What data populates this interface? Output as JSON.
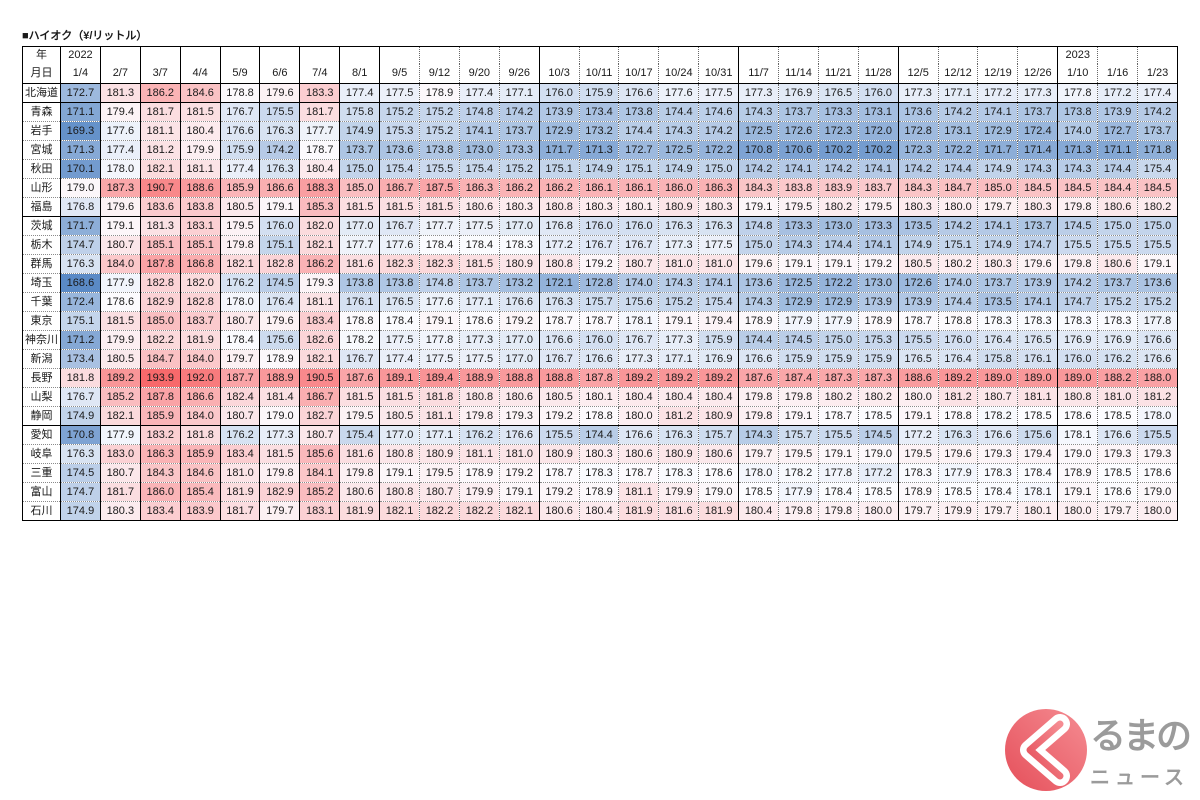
{
  "chart_data": {
    "type": "heatmap",
    "title": "■ハイオク（¥/リットル）",
    "year_label": "年",
    "date_label": "月日",
    "columns": [
      {
        "year": "2022",
        "date": "1/4"
      },
      {
        "date": "2/7"
      },
      {
        "date": "3/7"
      },
      {
        "date": "4/4"
      },
      {
        "date": "5/9"
      },
      {
        "date": "6/6"
      },
      {
        "date": "7/4"
      },
      {
        "date": "8/1"
      },
      {
        "date": "9/5"
      },
      {
        "date": "9/12"
      },
      {
        "date": "9/20"
      },
      {
        "date": "9/26"
      },
      {
        "date": "10/3"
      },
      {
        "date": "10/11"
      },
      {
        "date": "10/17"
      },
      {
        "date": "10/24"
      },
      {
        "date": "10/31"
      },
      {
        "date": "11/7"
      },
      {
        "date": "11/14"
      },
      {
        "date": "11/21"
      },
      {
        "date": "11/28"
      },
      {
        "date": "12/5"
      },
      {
        "date": "12/12"
      },
      {
        "date": "12/19"
      },
      {
        "date": "12/26"
      },
      {
        "year": "2023",
        "date": "1/10"
      },
      {
        "date": "1/16"
      },
      {
        "date": "1/23"
      }
    ],
    "rows": [
      {
        "name": "北海道",
        "values": [
          172.7,
          181.3,
          186.2,
          184.6,
          178.8,
          179.6,
          183.3,
          177.4,
          177.5,
          178.9,
          177.4,
          177.1,
          176.0,
          175.9,
          176.6,
          177.6,
          177.5,
          177.3,
          176.9,
          176.5,
          176.0,
          177.3,
          177.1,
          177.2,
          177.3,
          177.8,
          177.2,
          177.4
        ]
      },
      {
        "name": "青森",
        "values": [
          171.1,
          179.4,
          181.7,
          181.5,
          176.7,
          175.5,
          181.7,
          175.8,
          175.2,
          175.2,
          174.8,
          174.2,
          173.9,
          173.4,
          173.8,
          174.4,
          174.6,
          174.3,
          173.7,
          173.3,
          173.1,
          173.6,
          174.2,
          174.1,
          173.7,
          173.8,
          173.9,
          174.2
        ]
      },
      {
        "name": "岩手",
        "values": [
          169.3,
          177.6,
          181.1,
          180.4,
          176.6,
          176.3,
          177.7,
          174.9,
          175.3,
          175.2,
          174.1,
          173.7,
          172.9,
          173.2,
          174.4,
          174.3,
          174.2,
          172.5,
          172.6,
          172.3,
          172.0,
          172.8,
          173.1,
          172.9,
          172.4,
          174.0,
          172.7,
          173.7
        ]
      },
      {
        "name": "宮城",
        "values": [
          171.3,
          177.4,
          181.2,
          179.9,
          175.9,
          174.2,
          178.7,
          173.7,
          173.6,
          173.8,
          173.0,
          173.3,
          171.7,
          171.3,
          172.7,
          172.5,
          172.2,
          170.8,
          170.6,
          170.2,
          170.2,
          172.3,
          172.2,
          171.7,
          171.4,
          171.3,
          171.1,
          171.8
        ]
      },
      {
        "name": "秋田",
        "values": [
          170.1,
          178.0,
          182.1,
          181.1,
          177.4,
          176.3,
          180.4,
          175.0,
          175.4,
          175.5,
          175.4,
          175.2,
          175.1,
          174.9,
          175.1,
          174.9,
          175.0,
          174.2,
          174.1,
          174.2,
          174.1,
          174.2,
          174.4,
          174.9,
          174.3,
          174.3,
          174.4,
          175.4
        ]
      },
      {
        "name": "山形",
        "values": [
          179.0,
          187.3,
          190.7,
          188.6,
          185.9,
          186.6,
          188.3,
          185.0,
          186.7,
          187.5,
          186.3,
          186.2,
          186.2,
          186.1,
          186.1,
          186.0,
          186.3,
          184.3,
          183.8,
          183.9,
          183.7,
          184.3,
          184.7,
          185.0,
          184.5,
          184.5,
          184.4,
          184.5
        ]
      },
      {
        "name": "福島",
        "values": [
          176.8,
          179.6,
          183.6,
          183.8,
          180.5,
          179.1,
          185.3,
          181.5,
          181.5,
          181.5,
          180.6,
          180.3,
          180.8,
          180.3,
          180.1,
          180.9,
          180.3,
          179.1,
          179.5,
          180.2,
          179.5,
          180.3,
          180.0,
          179.7,
          180.3,
          179.8,
          180.6,
          180.2
        ]
      },
      {
        "name": "茨城",
        "values": [
          171.7,
          179.1,
          181.3,
          183.1,
          179.5,
          176.0,
          182.0,
          177.0,
          176.7,
          177.7,
          177.5,
          177.0,
          176.8,
          176.0,
          176.0,
          176.3,
          176.3,
          174.8,
          173.3,
          173.0,
          173.3,
          173.5,
          174.2,
          174.1,
          173.7,
          174.5,
          175.0,
          175.0
        ]
      },
      {
        "name": "栃木",
        "values": [
          174.7,
          180.7,
          185.1,
          185.1,
          179.8,
          175.1,
          182.1,
          177.7,
          177.6,
          178.4,
          178.4,
          178.3,
          177.2,
          176.7,
          176.7,
          177.3,
          177.5,
          175.0,
          174.3,
          174.4,
          174.1,
          174.9,
          175.1,
          174.9,
          174.7,
          175.5,
          175.5,
          175.5
        ]
      },
      {
        "name": "群馬",
        "values": [
          176.3,
          184.0,
          187.8,
          186.8,
          182.1,
          182.8,
          186.2,
          181.6,
          182.3,
          182.3,
          181.5,
          180.9,
          180.8,
          179.2,
          180.7,
          181.0,
          181.0,
          179.6,
          179.1,
          179.1,
          179.2,
          180.5,
          180.2,
          180.3,
          179.6,
          179.8,
          180.6,
          179.1
        ]
      },
      {
        "name": "埼玉",
        "values": [
          168.6,
          177.9,
          182.8,
          182.0,
          176.2,
          174.5,
          179.3,
          173.8,
          173.8,
          174.8,
          173.7,
          173.2,
          172.1,
          172.8,
          174.0,
          174.3,
          174.1,
          173.6,
          172.5,
          172.2,
          173.0,
          172.6,
          174.0,
          173.7,
          173.9,
          174.2,
          173.7,
          173.6
        ]
      },
      {
        "name": "千葉",
        "values": [
          172.4,
          178.6,
          182.9,
          182.8,
          178.0,
          176.4,
          181.1,
          176.1,
          176.5,
          177.6,
          177.1,
          176.6,
          176.3,
          175.7,
          175.6,
          175.2,
          175.4,
          174.3,
          172.9,
          172.9,
          173.9,
          173.9,
          174.4,
          173.5,
          174.1,
          174.7,
          175.2,
          175.2
        ]
      },
      {
        "name": "東京",
        "values": [
          175.1,
          181.5,
          185.0,
          183.7,
          180.7,
          179.6,
          183.4,
          178.8,
          178.4,
          179.1,
          178.6,
          179.2,
          178.7,
          178.7,
          178.1,
          179.1,
          179.4,
          178.9,
          177.9,
          177.9,
          178.9,
          178.7,
          178.8,
          178.3,
          178.3,
          178.3,
          178.3,
          177.8
        ]
      },
      {
        "name": "神奈川",
        "values": [
          171.2,
          179.9,
          182.2,
          181.9,
          178.4,
          175.6,
          182.6,
          178.2,
          177.5,
          177.8,
          177.3,
          177.0,
          176.6,
          176.0,
          176.7,
          177.3,
          175.9,
          174.4,
          174.5,
          175.0,
          175.3,
          175.5,
          176.0,
          176.4,
          176.5,
          176.9,
          176.9,
          176.6
        ]
      },
      {
        "name": "新潟",
        "values": [
          173.4,
          180.5,
          184.7,
          184.0,
          179.7,
          178.9,
          182.1,
          176.7,
          177.4,
          177.5,
          177.5,
          177.0,
          176.7,
          176.6,
          177.3,
          177.1,
          176.9,
          176.6,
          175.9,
          175.9,
          175.9,
          176.5,
          176.4,
          175.8,
          176.1,
          176.0,
          176.2,
          176.6
        ]
      },
      {
        "name": "長野",
        "values": [
          181.8,
          189.2,
          193.9,
          192.0,
          187.7,
          188.9,
          190.5,
          187.6,
          189.1,
          189.4,
          188.9,
          188.8,
          188.8,
          187.8,
          189.2,
          189.2,
          189.2,
          187.6,
          187.4,
          187.3,
          187.3,
          188.6,
          189.2,
          189.0,
          189.0,
          189.0,
          188.2,
          188.0
        ]
      },
      {
        "name": "山梨",
        "values": [
          176.7,
          185.2,
          187.8,
          186.6,
          182.4,
          181.4,
          186.7,
          181.5,
          181.5,
          181.8,
          180.8,
          180.6,
          180.5,
          180.1,
          180.4,
          180.4,
          180.4,
          179.8,
          179.8,
          180.2,
          180.2,
          180.0,
          181.2,
          180.7,
          181.1,
          180.8,
          181.0,
          181.2
        ]
      },
      {
        "name": "静岡",
        "values": [
          174.9,
          182.1,
          185.9,
          184.0,
          180.7,
          179.0,
          182.7,
          179.5,
          180.5,
          181.1,
          179.8,
          179.3,
          179.2,
          178.8,
          180.0,
          181.2,
          180.9,
          179.8,
          179.1,
          178.7,
          178.5,
          179.1,
          178.8,
          178.2,
          178.5,
          178.6,
          178.5,
          178.0
        ]
      },
      {
        "name": "愛知",
        "values": [
          170.8,
          177.9,
          183.2,
          181.8,
          176.2,
          177.3,
          180.7,
          175.4,
          177.0,
          177.1,
          176.2,
          176.6,
          175.5,
          174.4,
          176.6,
          176.3,
          175.7,
          174.3,
          175.7,
          175.5,
          174.5,
          177.2,
          176.3,
          176.6,
          175.6,
          178.1,
          176.6,
          175.5
        ]
      },
      {
        "name": "岐阜",
        "values": [
          176.3,
          183.0,
          186.3,
          185.9,
          183.4,
          181.5,
          185.6,
          181.6,
          180.8,
          180.9,
          181.1,
          181.0,
          180.9,
          180.3,
          180.6,
          180.9,
          180.6,
          179.7,
          179.5,
          179.1,
          179.0,
          179.5,
          179.6,
          179.3,
          179.4,
          179.0,
          179.3,
          179.3
        ]
      },
      {
        "name": "三重",
        "values": [
          174.5,
          180.7,
          184.3,
          184.6,
          181.0,
          179.8,
          184.1,
          179.8,
          179.1,
          179.5,
          178.9,
          179.2,
          178.7,
          178.3,
          178.7,
          178.3,
          178.6,
          178.0,
          178.2,
          177.8,
          177.2,
          178.3,
          177.9,
          178.3,
          178.4,
          178.9,
          178.5,
          178.6
        ]
      },
      {
        "name": "富山",
        "values": [
          174.7,
          181.7,
          186.0,
          185.4,
          181.9,
          182.9,
          185.2,
          180.6,
          180.8,
          180.7,
          179.9,
          179.1,
          179.2,
          178.9,
          181.1,
          179.9,
          179.0,
          178.5,
          177.9,
          178.4,
          178.5,
          178.9,
          178.5,
          178.4,
          178.1,
          179.1,
          178.6,
          179.0
        ]
      },
      {
        "name": "石川",
        "values": [
          174.9,
          180.3,
          183.4,
          183.9,
          181.7,
          179.7,
          183.1,
          181.9,
          182.1,
          182.2,
          182.2,
          182.1,
          180.6,
          180.4,
          181.9,
          181.6,
          181.9,
          180.4,
          179.8,
          179.8,
          180.0,
          179.7,
          179.9,
          179.7,
          180.1,
          180.0,
          179.7,
          180.0
        ]
      }
    ]
  },
  "colors": {
    "scale_low": "#5A8AC6",
    "scale_mid": "#FCFCFF",
    "scale_high": "#F8696B",
    "text": "#1A1A1A"
  },
  "logo": {
    "icon": "chevron-logo-icon",
    "line1": "るまの",
    "line2": "ニュース",
    "mark_color": "#E54F5A",
    "mark_color_light": "#F58C92",
    "text_color": "#9B9B9B"
  }
}
